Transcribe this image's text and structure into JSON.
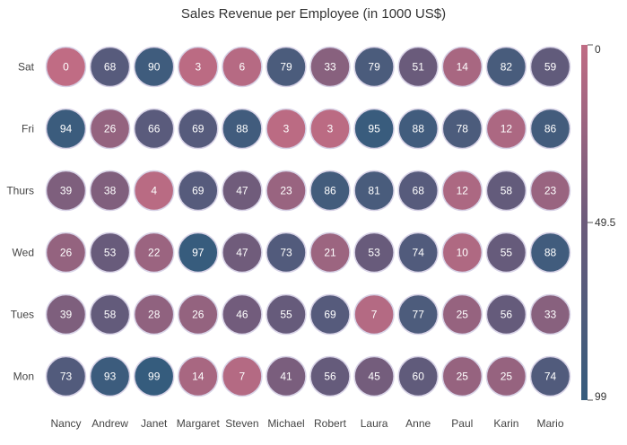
{
  "chart_data": {
    "type": "heatmap",
    "title": "Sales Revenue per Employee (in 1000 US$)",
    "xlabel": "",
    "ylabel": "",
    "x_categories": [
      "Nancy",
      "Andrew",
      "Janet",
      "Margaret",
      "Steven",
      "Michael",
      "Robert",
      "Laura",
      "Anne",
      "Paul",
      "Karin",
      "Mario"
    ],
    "y_categories": [
      "Sat",
      "Fri",
      "Thurs",
      "Wed",
      "Tues",
      "Mon"
    ],
    "values": [
      [
        0,
        68,
        90,
        3,
        6,
        79,
        33,
        79,
        51,
        14,
        82,
        59
      ],
      [
        94,
        26,
        66,
        69,
        88,
        3,
        3,
        95,
        88,
        78,
        12,
        86
      ],
      [
        39,
        38,
        4,
        69,
        47,
        23,
        86,
        81,
        68,
        12,
        58,
        23
      ],
      [
        26,
        53,
        22,
        97,
        47,
        73,
        21,
        53,
        74,
        10,
        55,
        88
      ],
      [
        39,
        58,
        28,
        26,
        46,
        55,
        69,
        7,
        77,
        25,
        56,
        33
      ],
      [
        73,
        93,
        99,
        14,
        7,
        41,
        56,
        45,
        60,
        25,
        25,
        74
      ]
    ],
    "color_scale": {
      "min": 0,
      "mid": 49.5,
      "max": 99,
      "min_color": "#C06C84",
      "mid_color": "#6C5B7B",
      "max_color": "#355C7D",
      "tick_labels": [
        "0",
        "49.5",
        "99"
      ]
    },
    "cell_shape": "circle",
    "cell_stroke_color": "#D7D2E6",
    "label_color_light": "#FFFFFF",
    "label_color_dark": "#222222",
    "legend_position": "right",
    "grid": false
  }
}
